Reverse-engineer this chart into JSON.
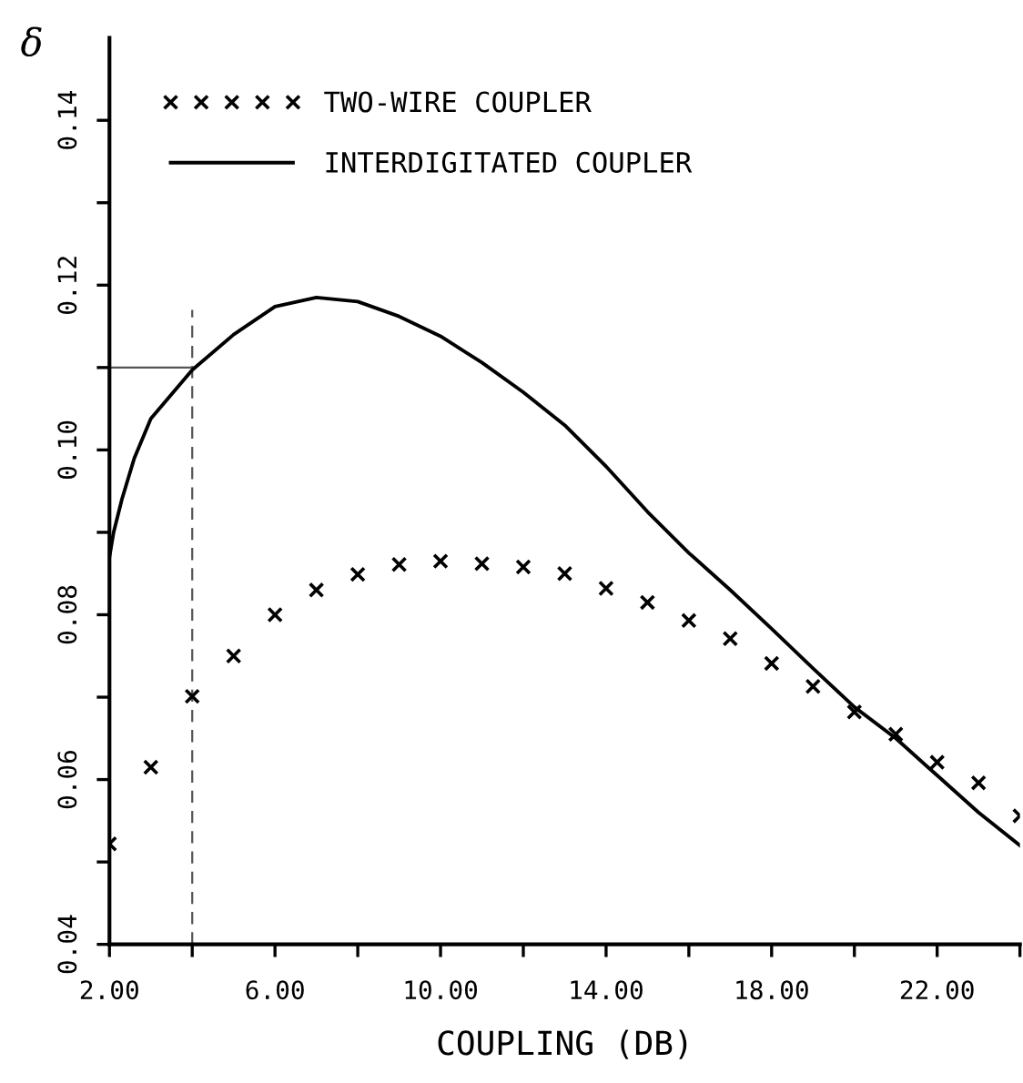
{
  "chart_data": {
    "type": "line",
    "xlabel": "COUPLING (DB)",
    "ylabel": "δ",
    "legend": "top left",
    "grid": false,
    "xlim": [
      2,
      24
    ],
    "ylim": [
      0.04,
      0.15
    ],
    "xticks": [
      {
        "value": 2,
        "label": "2.00"
      },
      {
        "value": 4,
        "label": null
      },
      {
        "value": 6,
        "label": "6.00"
      },
      {
        "value": 8,
        "label": null
      },
      {
        "value": 10,
        "label": "10.00"
      },
      {
        "value": 12,
        "label": null
      },
      {
        "value": 14,
        "label": "14.00"
      },
      {
        "value": 16,
        "label": null
      },
      {
        "value": 18,
        "label": "18.00"
      },
      {
        "value": 20,
        "label": null
      },
      {
        "value": 22,
        "label": "22.00"
      },
      {
        "value": 24,
        "label": null
      }
    ],
    "yticks": [
      {
        "value": 0.04,
        "label": "0.04"
      },
      {
        "value": 0.05,
        "label": null
      },
      {
        "value": 0.06,
        "label": "0.06"
      },
      {
        "value": 0.07,
        "label": null
      },
      {
        "value": 0.08,
        "label": "0.08"
      },
      {
        "value": 0.09,
        "label": null
      },
      {
        "value": 0.1,
        "label": "0.10"
      },
      {
        "value": 0.11,
        "label": null
      },
      {
        "value": 0.12,
        "label": "0.12"
      },
      {
        "value": 0.13,
        "label": null
      },
      {
        "value": 0.14,
        "label": "0.14"
      }
    ],
    "ref_lines": [
      {
        "axis": "x",
        "value": 4,
        "line_style": "dashed",
        "color": "#555555"
      },
      {
        "axis": "y",
        "value": 0.11,
        "line_style": "solid",
        "color": "#555555"
      }
    ],
    "series": [
      {
        "name": "TWO-WIRE COUPLER",
        "type": "scatter",
        "marker": "cross",
        "color": "#000000",
        "x": [
          2,
          3,
          4,
          5,
          6,
          7,
          8,
          9,
          10,
          11,
          12,
          13,
          14,
          15,
          16,
          17,
          18,
          19,
          20,
          21,
          22,
          23,
          24
        ],
        "values": [
          0.0522,
          0.0615,
          0.0701,
          0.075,
          0.08,
          0.083,
          0.0849,
          0.0861,
          0.0865,
          0.0862,
          0.0858,
          0.085,
          0.0832,
          0.0815,
          0.0793,
          0.0771,
          0.0741,
          0.0713,
          0.0682,
          0.0655,
          0.0621,
          0.0596,
          0.0556
        ]
      },
      {
        "name": "INTERDIGITATED COUPLER",
        "line_style": "solid",
        "color": "#000000",
        "x": [
          2,
          2.1,
          2.3,
          2.6,
          3,
          4,
          5,
          6,
          7,
          8,
          9,
          10,
          11,
          12,
          13,
          14,
          15,
          16,
          17,
          18,
          19,
          20,
          21,
          22,
          23,
          24
        ],
        "values": [
          0.087,
          0.09,
          0.094,
          0.099,
          0.1038,
          0.1097,
          0.114,
          0.1174,
          0.1185,
          0.118,
          0.1162,
          0.1138,
          0.1106,
          0.107,
          0.103,
          0.098,
          0.0925,
          0.0875,
          0.083,
          0.0783,
          0.0735,
          0.0688,
          0.065,
          0.0605,
          0.056,
          0.052
        ]
      }
    ]
  }
}
